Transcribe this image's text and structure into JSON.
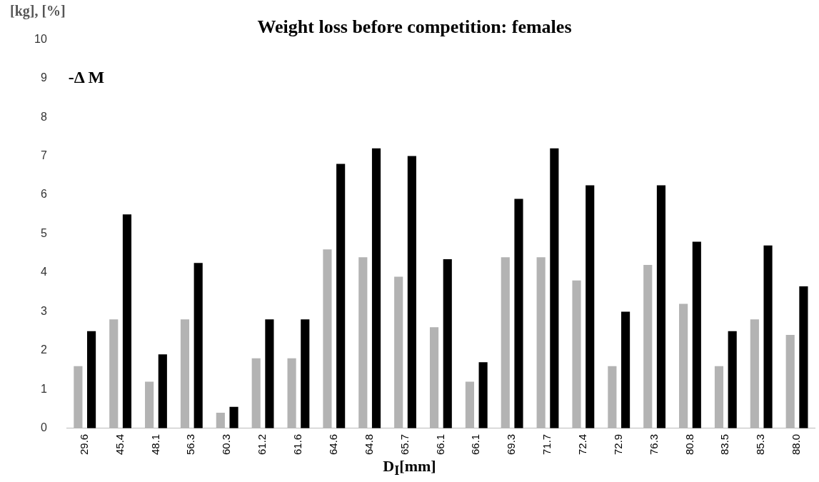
{
  "chart_data": {
    "type": "bar",
    "title": "Weight loss before competition: females",
    "ylabel": "[kg], [%]",
    "xlabel": "D$_{I}$[mm]",
    "annotations": [
      "-Δ M"
    ],
    "categories": [
      "29.6",
      "45.4",
      "48.1",
      "56.3",
      "60.3",
      "61.2",
      "61.6",
      "64.6",
      "64.8",
      "65.7",
      "66.1",
      "66.1",
      "69.3",
      "71.7",
      "72.4",
      "72.9",
      "76.3",
      "80.8",
      "83.5",
      "85.3",
      "88.0"
    ],
    "series": [
      {
        "color": "#b3b3b3",
        "values": [
          1.6,
          2.8,
          1.2,
          2.8,
          0.4,
          1.8,
          1.8,
          4.6,
          4.4,
          3.9,
          2.6,
          1.2,
          4.4,
          4.4,
          3.8,
          1.6,
          4.2,
          3.2,
          1.6,
          2.8,
          2.4
        ]
      },
      {
        "color": "#000000",
        "values": [
          2.5,
          5.5,
          1.9,
          4.25,
          0.55,
          2.8,
          2.8,
          6.8,
          7.2,
          7.0,
          4.35,
          1.7,
          5.9,
          7.2,
          6.25,
          3.0,
          6.25,
          4.8,
          2.5,
          4.7,
          3.65
        ]
      }
    ],
    "ylim": [
      0,
      10
    ],
    "yticks": [
      0,
      1,
      2,
      3,
      4,
      5,
      6,
      7,
      8,
      9,
      10
    ],
    "grid": false,
    "legend": false
  }
}
